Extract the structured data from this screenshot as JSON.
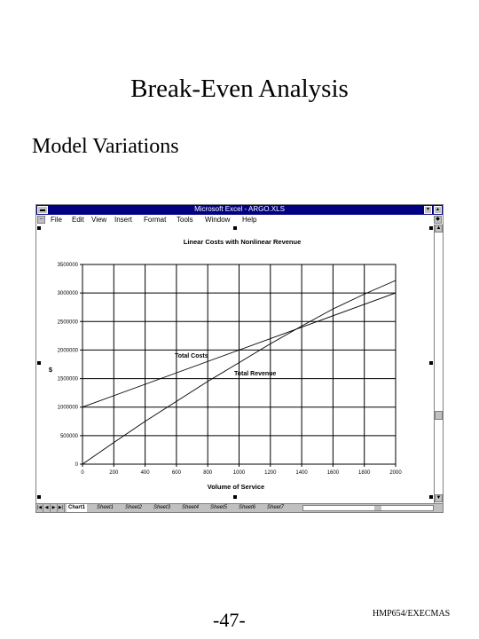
{
  "slide": {
    "title": "Break-Even Analysis",
    "subtitle": "Model Variations",
    "page_number": "-47-",
    "footer_code": "HMP654/EXECMAS"
  },
  "window": {
    "title": "Microsoft Excel - ARGO.XLS",
    "titlebar_color": "#000080",
    "menu": [
      "File",
      "Edit",
      "View",
      "Insert",
      "Format",
      "Tools",
      "Window",
      "Help"
    ],
    "sheet_tabs": [
      "Chart1",
      "Sheet1",
      "Sheet2",
      "Sheet3",
      "Sheet4",
      "Sheet5",
      "Sheet6",
      "Sheet7"
    ],
    "active_tab": "Chart1"
  },
  "chart_data": {
    "type": "line",
    "title": "Linear Costs with Nonlinear Revenue",
    "xlabel": "Volume of Service",
    "ylabel": "$",
    "xlim": [
      0,
      2000
    ],
    "ylim": [
      0,
      3500000
    ],
    "x_ticks": [
      0,
      200,
      400,
      600,
      800,
      1000,
      1200,
      1400,
      1600,
      1800,
      2000
    ],
    "y_ticks": [
      0,
      500000,
      1000000,
      1500000,
      2000000,
      2500000,
      3000000,
      3500000
    ],
    "grid": true,
    "series": [
      {
        "name": "Total Costs",
        "x": [
          0,
          2000
        ],
        "values": [
          1000000,
          3000000
        ]
      },
      {
        "name": "Total Revenue",
        "x": [
          0,
          200,
          400,
          600,
          800,
          1000,
          1200,
          1400,
          1600,
          1800,
          2000
        ],
        "values": [
          0,
          380000,
          750000,
          1100000,
          1450000,
          1780000,
          2110000,
          2420000,
          2720000,
          2980000,
          3220000
        ]
      }
    ]
  }
}
